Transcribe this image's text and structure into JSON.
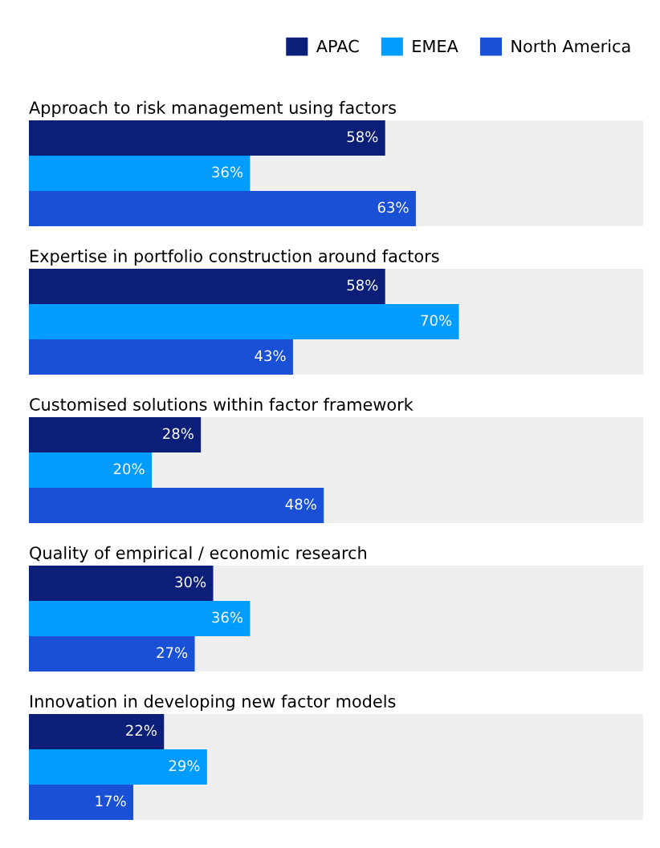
{
  "chart_data": [
    {
      "type": "bar",
      "orientation": "horizontal",
      "title": "Approach to risk management using factors",
      "categories": [
        null
      ],
      "xlim": [
        0,
        100
      ],
      "tick_labels": false,
      "legend": "top right",
      "series": [
        {
          "name": "APAC",
          "color": "#0b1e78",
          "values": [
            58
          ],
          "value_labels": [
            "58%"
          ]
        },
        {
          "name": "EMEA",
          "color": "#009cff",
          "values": [
            36
          ],
          "value_labels": [
            "36%"
          ]
        },
        {
          "name": "North America",
          "color": "#1a50d6",
          "values": [
            63
          ],
          "value_labels": [
            "63%"
          ]
        }
      ]
    },
    {
      "type": "bar",
      "orientation": "horizontal",
      "title": "Expertise in portfolio construction around factors",
      "categories": [
        null
      ],
      "xlim": [
        0,
        100
      ],
      "tick_labels": false,
      "series": [
        {
          "color": "#0b1e78",
          "values": [
            58
          ],
          "value_labels": [
            "58%"
          ]
        },
        {
          "color": "#009cff",
          "values": [
            70
          ],
          "value_labels": [
            "70%"
          ]
        },
        {
          "color": "#1a50d6",
          "values": [
            43
          ],
          "value_labels": [
            "43%"
          ]
        }
      ]
    },
    {
      "type": "bar",
      "orientation": "horizontal",
      "title": "Customised solutions within factor framework",
      "categories": [
        null
      ],
      "xlim": [
        0,
        100
      ],
      "tick_labels": false,
      "series": [
        {
          "color": "#0b1e78",
          "values": [
            28
          ],
          "value_labels": [
            "28%"
          ]
        },
        {
          "color": "#009cff",
          "values": [
            20
          ],
          "value_labels": [
            "20%"
          ]
        },
        {
          "color": "#1a50d6",
          "values": [
            48
          ],
          "value_labels": [
            "48%"
          ]
        }
      ]
    },
    {
      "type": "bar",
      "orientation": "horizontal",
      "title": "Quality of empirical / economic research",
      "categories": [
        null
      ],
      "xlim": [
        0,
        100
      ],
      "tick_labels": false,
      "series": [
        {
          "color": "#0b1e78",
          "values": [
            30
          ],
          "value_labels": [
            "30%"
          ]
        },
        {
          "color": "#009cff",
          "values": [
            36
          ],
          "value_labels": [
            "36%"
          ]
        },
        {
          "color": "#1a50d6",
          "values": [
            27
          ],
          "value_labels": [
            "27%"
          ]
        }
      ]
    },
    {
      "type": "bar",
      "orientation": "horizontal",
      "title": "Innovation in developing new factor models",
      "categories": [
        null
      ],
      "xlim": [
        0,
        100
      ],
      "tick_labels": false,
      "series": [
        {
          "color": "#0b1e78",
          "values": [
            22
          ],
          "value_labels": [
            "22%"
          ]
        },
        {
          "color": "#009cff",
          "values": [
            29
          ],
          "value_labels": [
            "29%"
          ]
        },
        {
          "color": "#1a50d6",
          "values": [
            17
          ],
          "value_labels": [
            "17%"
          ]
        }
      ]
    }
  ]
}
